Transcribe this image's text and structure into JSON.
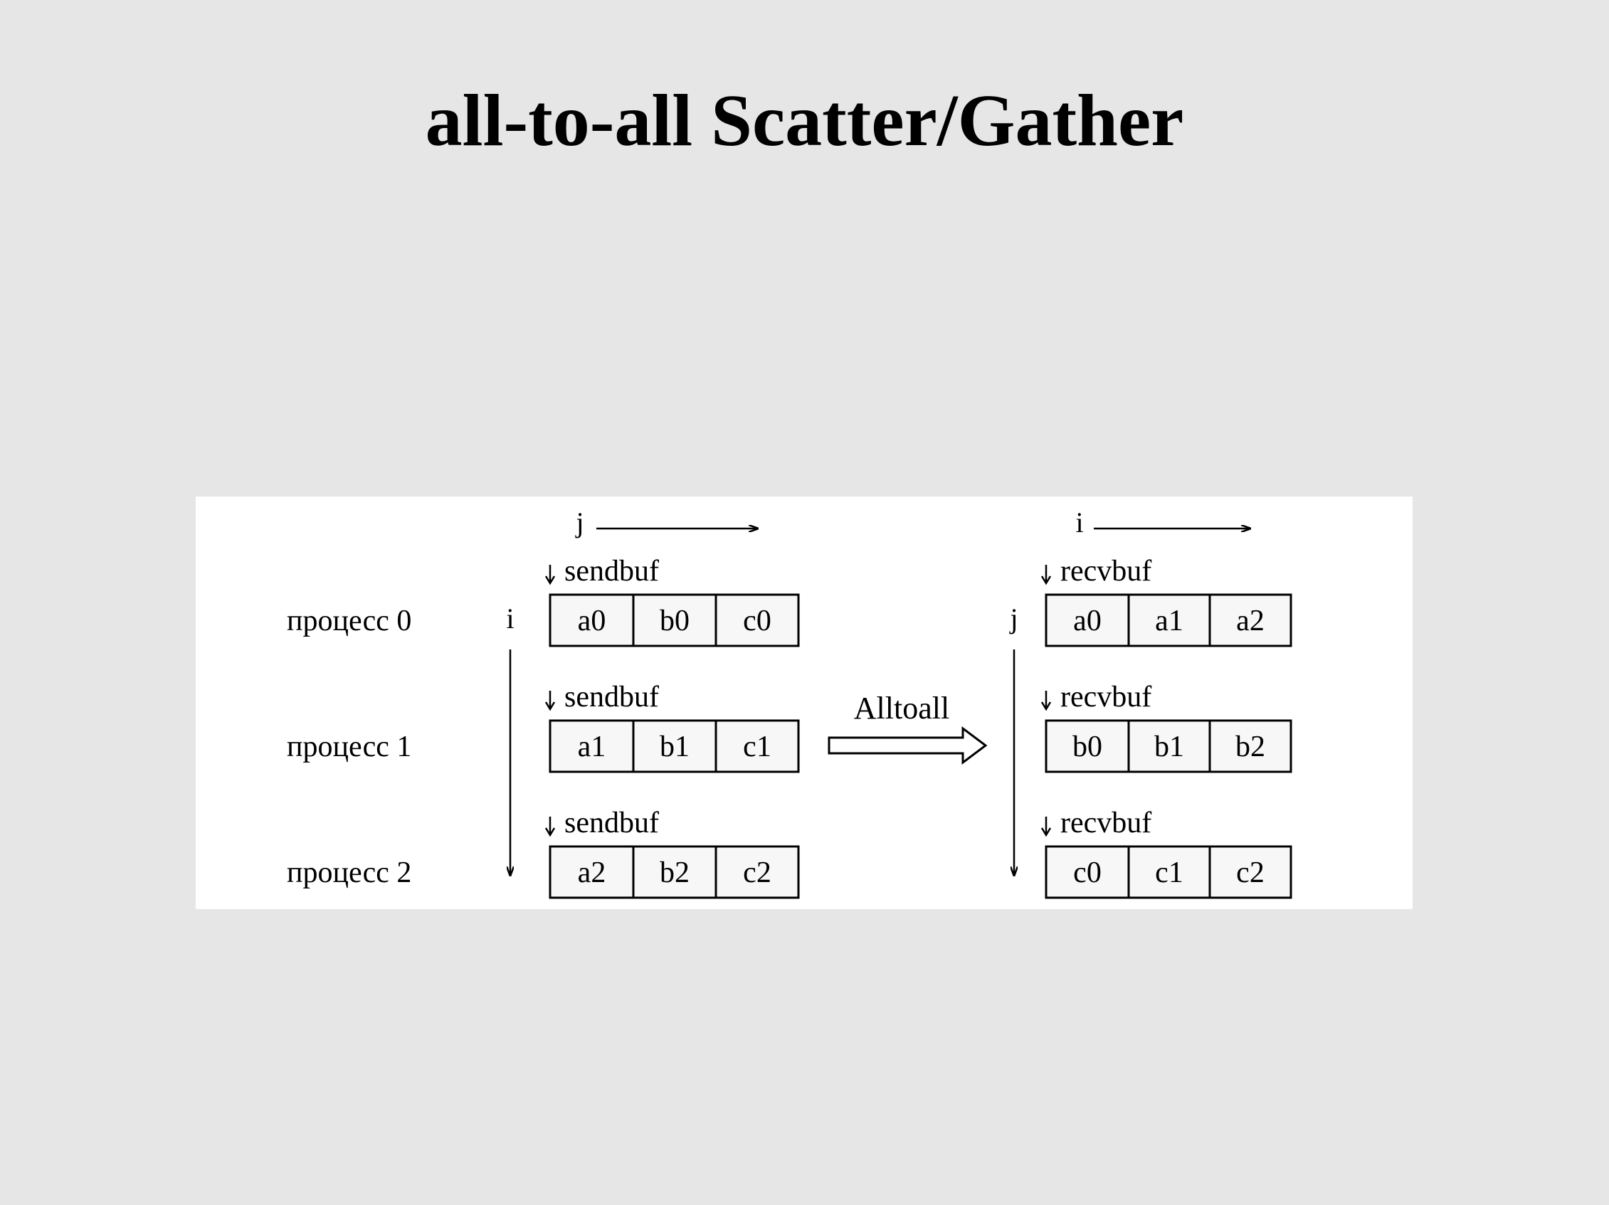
{
  "title": "all-to-all Scatter/Gather",
  "diagram": {
    "left_axis_label": "j",
    "right_axis_label": "i",
    "left_row_axis_label": "i",
    "right_row_axis_label": "j",
    "operation_label": "Alltoall",
    "processes": [
      {
        "label": "процесс 0",
        "send_label": "sendbuf",
        "recv_label": "recvbuf",
        "send": [
          "a0",
          "b0",
          "c0"
        ],
        "recv": [
          "a0",
          "a1",
          "a2"
        ]
      },
      {
        "label": "процесс 1",
        "send_label": "sendbuf",
        "recv_label": "recvbuf",
        "send": [
          "a1",
          "b1",
          "c1"
        ],
        "recv": [
          "b0",
          "b1",
          "b2"
        ]
      },
      {
        "label": "процесс 2",
        "send_label": "sendbuf",
        "recv_label": "recvbuf",
        "send": [
          "a2",
          "b2",
          "c2"
        ],
        "recv": [
          "c0",
          "c1",
          "c2"
        ]
      }
    ]
  }
}
